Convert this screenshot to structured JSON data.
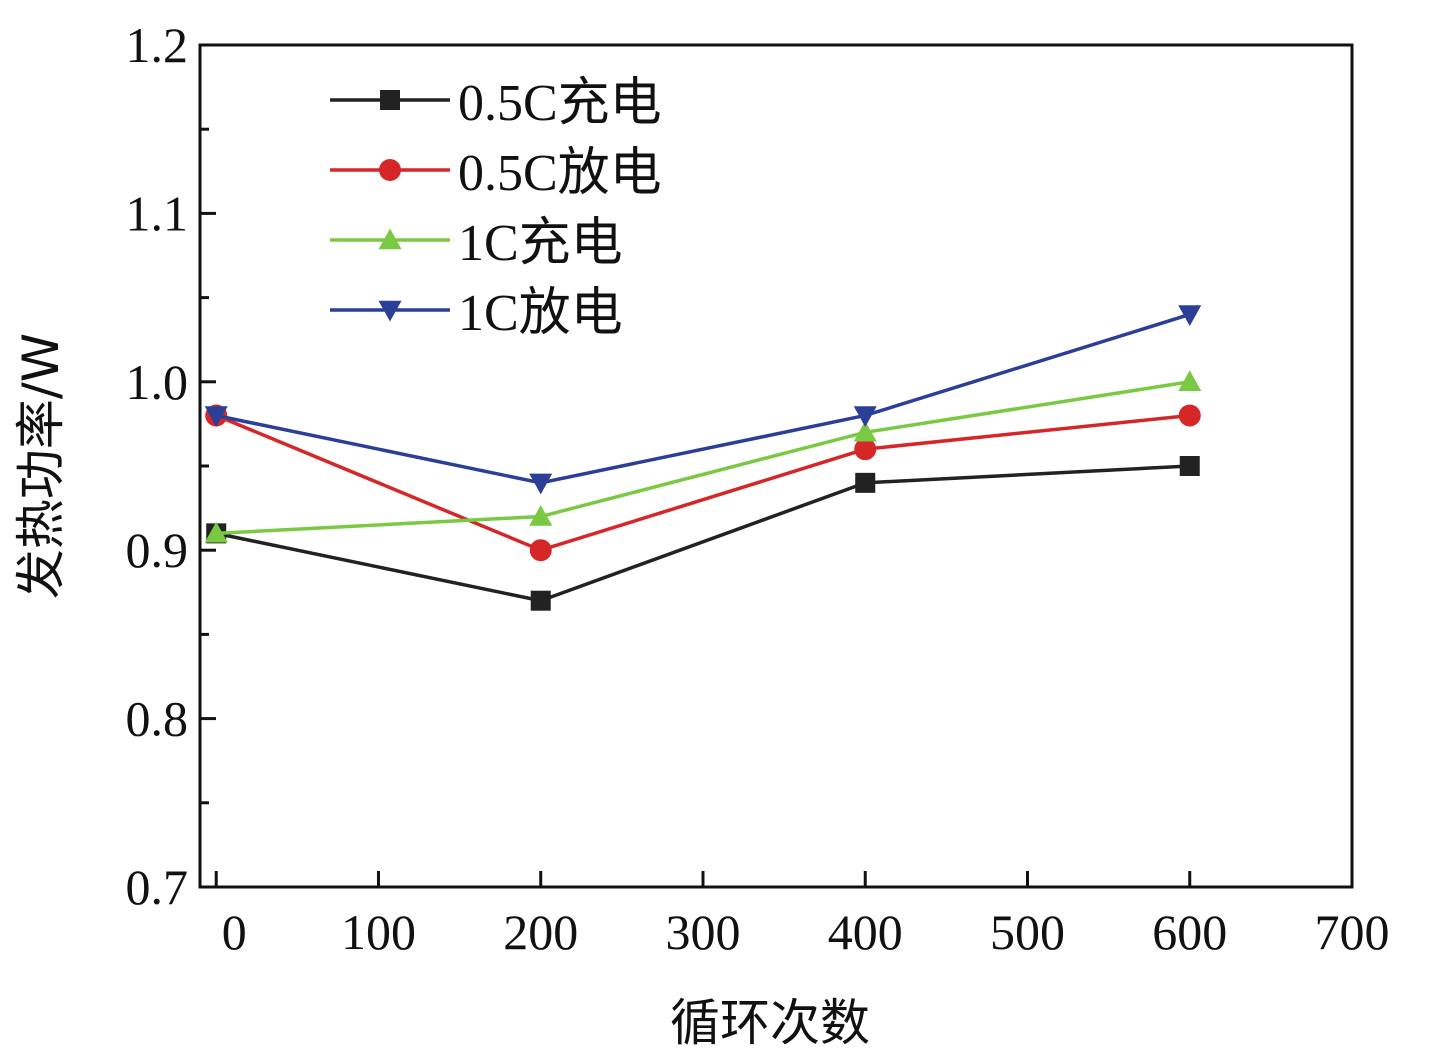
{
  "chart_data": {
    "type": "line",
    "title": "",
    "xlabel": "循环次数",
    "ylabel": "发热功率/W",
    "xlim": [
      -10,
      700
    ],
    "ylim": [
      0.7,
      1.2
    ],
    "x_ticks": [
      0,
      100,
      200,
      300,
      400,
      500,
      600,
      700
    ],
    "y_ticks": [
      0.7,
      0.8,
      0.9,
      1.0,
      1.1,
      1.2
    ],
    "x_tick_labels": [
      "0",
      "100",
      "200",
      "300",
      "400",
      "500",
      "600",
      "700"
    ],
    "y_tick_labels": [
      "0.7",
      "0.8",
      "0.9",
      "1.0",
      "1.1",
      "1.2"
    ],
    "grid": false,
    "legend_position": "top-left",
    "x": [
      0,
      200,
      400,
      600
    ],
    "series": [
      {
        "name": "0.5C充电",
        "values": [
          0.91,
          0.87,
          0.94,
          0.95
        ],
        "color": "#222222",
        "marker": "square"
      },
      {
        "name": "0.5C放电",
        "values": [
          0.98,
          0.9,
          0.96,
          0.98
        ],
        "color": "#d62728",
        "marker": "circle"
      },
      {
        "name": "1C充电",
        "values": [
          0.91,
          0.92,
          0.97,
          1.0
        ],
        "color": "#7ac943",
        "marker": "triangle-up"
      },
      {
        "name": "1C放电",
        "values": [
          0.98,
          0.94,
          0.98,
          1.04
        ],
        "color": "#2b3f99",
        "marker": "triangle-down"
      }
    ]
  }
}
